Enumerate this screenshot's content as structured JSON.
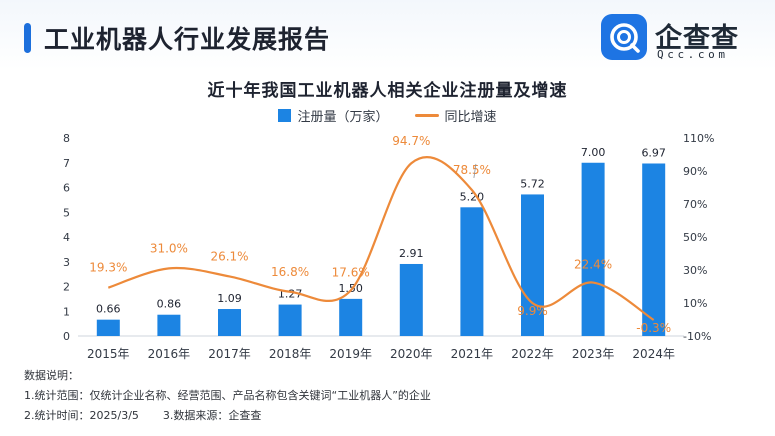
{
  "header": {
    "title": "工业机器人行业发展报告",
    "brand_name": "企查查",
    "brand_domain": "Qcc.com"
  },
  "colors": {
    "accent": "#1c6fdc",
    "bar": "#1c84e3",
    "line": "#ed8a3a",
    "text": "#1e2330"
  },
  "chart_data": {
    "type": "bar",
    "title": "近十年我国工业机器人相关企业注册量及增速",
    "categories": [
      "2015年",
      "2016年",
      "2017年",
      "2018年",
      "2019年",
      "2020年",
      "2021年",
      "2022年",
      "2023年",
      "2024年"
    ],
    "series": [
      {
        "name": "注册量（万家）",
        "type": "bar",
        "axis": "left",
        "values": [
          0.66,
          0.86,
          1.09,
          1.27,
          1.5,
          2.91,
          5.2,
          5.72,
          7.0,
          6.97
        ],
        "labels": [
          "0.66",
          "0.86",
          "1.09",
          "1.27",
          "1.50",
          "2.91",
          "5.20",
          "5.72",
          "7.00",
          "6.97"
        ]
      },
      {
        "name": "同比增速",
        "type": "line",
        "axis": "right",
        "values": [
          19.3,
          31.0,
          26.1,
          16.8,
          17.6,
          94.7,
          78.5,
          9.9,
          22.4,
          -0.3
        ],
        "labels": [
          "19.3%",
          "31.0%",
          "26.1%",
          "16.8%",
          "17.6%",
          "94.7%",
          "78.5%",
          "9.9%",
          "22.4%",
          "-0.3%"
        ]
      }
    ],
    "y_left": {
      "min": 0,
      "max": 8,
      "ticks": [
        "0",
        "1",
        "2",
        "3",
        "4",
        "5",
        "6",
        "7",
        "8"
      ]
    },
    "y_right": {
      "min": -10,
      "max": 110,
      "ticks": [
        "-10%",
        "10%",
        "30%",
        "50%",
        "70%",
        "90%",
        "110%"
      ]
    },
    "legend_position": "top-center",
    "grid": false
  },
  "notes": {
    "heading": "数据说明：",
    "scope": "1.统计范围：仅统计企业名称、经营范围、产品名称包含关键词“工业机器人”的企业",
    "time": "2.统计时间：2025/3/5",
    "source": "3.数据来源：企查查"
  }
}
